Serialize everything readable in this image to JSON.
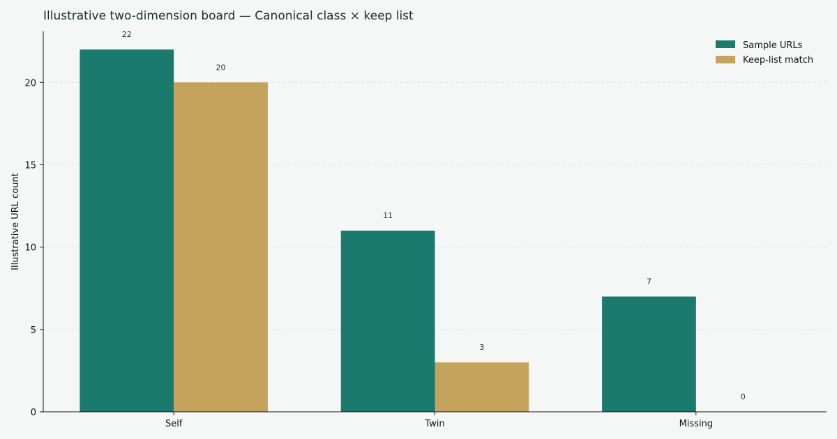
{
  "chart_data": {
    "type": "bar",
    "title": "Illustrative two-dimension board — Canonical class × keep list",
    "xlabel": "",
    "ylabel": "Illustrative URL count",
    "categories": [
      "Self",
      "Twin",
      "Missing"
    ],
    "series": [
      {
        "name": "Sample URLs",
        "values": [
          22,
          11,
          7
        ],
        "color": "#1b7a6e"
      },
      {
        "name": "Keep-list match",
        "values": [
          20,
          3,
          0
        ],
        "color": "#c4a45c"
      }
    ],
    "ylim": [
      0,
      23.1
    ],
    "yticks": [
      0,
      5,
      10,
      15,
      20
    ],
    "grid": true,
    "legend_position": "top-right"
  }
}
